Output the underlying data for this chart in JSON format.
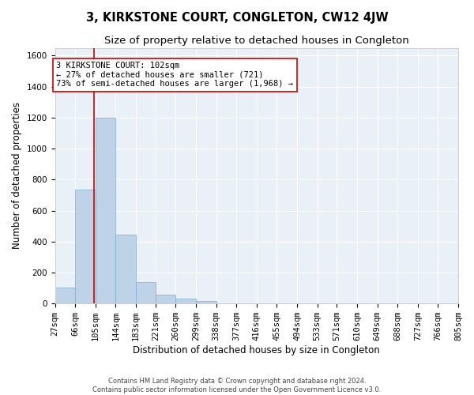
{
  "title": "3, KIRKSTONE COURT, CONGLETON, CW12 4JW",
  "subtitle": "Size of property relative to detached houses in Congleton",
  "xlabel": "Distribution of detached houses by size in Congleton",
  "ylabel": "Number of detached properties",
  "footer_line1": "Contains HM Land Registry data © Crown copyright and database right 2024.",
  "footer_line2": "Contains public sector information licensed under the Open Government Licence v3.0.",
  "bar_edges": [
    27,
    66,
    105,
    144,
    183,
    221,
    260,
    299,
    338,
    377,
    416,
    455,
    494,
    533,
    571,
    610,
    649,
    688,
    727,
    766,
    805
  ],
  "bar_heights": [
    105,
    735,
    1200,
    445,
    140,
    55,
    32,
    14,
    0,
    0,
    0,
    0,
    0,
    0,
    0,
    0,
    0,
    0,
    0,
    0
  ],
  "bar_color": "#bed3e8",
  "bar_edge_color": "#7aaed0",
  "bar_edge_width": 0.5,
  "property_size": 102,
  "red_line_color": "#cc0000",
  "annotation_text": "3 KIRKSTONE COURT: 102sqm\n← 27% of detached houses are smaller (721)\n73% of semi-detached houses are larger (1,968) →",
  "annotation_box_color": "#ffffff",
  "annotation_box_edge": "#cc0000",
  "ylim": [
    0,
    1650
  ],
  "yticks": [
    0,
    200,
    400,
    600,
    800,
    1000,
    1200,
    1400,
    1600
  ],
  "bg_color": "#eaf0f8",
  "fig_color": "#ffffff",
  "grid_color": "#ffffff",
  "title_fontsize": 10.5,
  "subtitle_fontsize": 9.5,
  "tick_fontsize": 7.5,
  "axis_label_fontsize": 8.5,
  "annot_fontsize": 7.5
}
